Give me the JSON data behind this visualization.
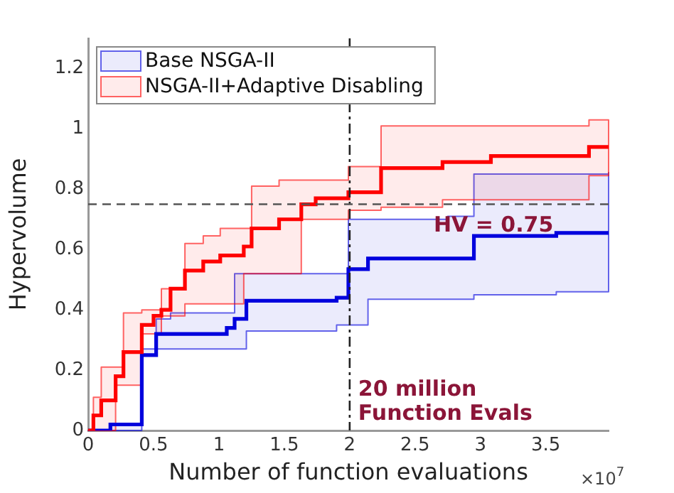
{
  "chart_data": {
    "type": "step",
    "xlabel": "Number of function evaluations",
    "ylabel": "Hypervolume",
    "xlim": [
      0,
      3.98
    ],
    "xticks": [
      0,
      0.5,
      1,
      1.5,
      2,
      2.5,
      3,
      3.5
    ],
    "ylim": [
      0,
      1.3
    ],
    "yticks": [
      0,
      0.2,
      0.4,
      0.6,
      0.8,
      1,
      1.2
    ],
    "grid": false,
    "legend": "top left",
    "series": [
      {
        "name": "Base NSGA-II",
        "color": "#0000dd",
        "x": [
          0,
          0.17,
          0.41,
          0.52,
          0.63,
          1.06,
          1.12,
          1.21,
          1.9,
          1.99,
          2.14,
          2.75,
          2.95,
          3.58,
          3.98
        ],
        "values": [
          0,
          0.02,
          0.25,
          0.32,
          0.32,
          0.34,
          0.37,
          0.43,
          0.44,
          0.535,
          0.57,
          0.57,
          0.645,
          0.655,
          0.66
        ],
        "upper": [
          0,
          0.02,
          0.27,
          0.37,
          0.39,
          0.39,
          0.52,
          0.52,
          0.52,
          0.7,
          0.7,
          0.71,
          0.85,
          0.85,
          0.855
        ],
        "lower": [
          0,
          0,
          0.25,
          0.27,
          0.27,
          0.27,
          0.27,
          0.33,
          0.35,
          0.35,
          0.435,
          0.435,
          0.45,
          0.46,
          0.46
        ]
      },
      {
        "name": "NSGA-II+Adaptive Disabling",
        "color": "#ff0000",
        "x": [
          0,
          0.04,
          0.1,
          0.21,
          0.27,
          0.41,
          0.5,
          0.56,
          0.63,
          0.74,
          0.88,
          1.01,
          1.19,
          1.25,
          1.46,
          1.63,
          1.74,
          1.99,
          2.24,
          2.71,
          3.08,
          3.83,
          3.98
        ],
        "values": [
          0,
          0.05,
          0.1,
          0.18,
          0.26,
          0.35,
          0.38,
          0.4,
          0.47,
          0.53,
          0.56,
          0.58,
          0.61,
          0.67,
          0.7,
          0.75,
          0.77,
          0.79,
          0.87,
          0.89,
          0.91,
          0.94,
          0.945
        ],
        "upper": [
          0,
          0.11,
          0.21,
          0.21,
          0.39,
          0.4,
          0.4,
          0.47,
          0.47,
          0.62,
          0.645,
          0.67,
          0.67,
          0.81,
          0.83,
          0.83,
          0.83,
          0.875,
          1.01,
          1.01,
          1.01,
          1.03,
          1.03
        ],
        "lower": [
          0,
          0,
          0,
          0.15,
          0.15,
          0.32,
          0.32,
          0.38,
          0.38,
          0.42,
          0.42,
          0.42,
          0.52,
          0.52,
          0.52,
          0.7,
          0.7,
          0.73,
          0.74,
          0.765,
          0.765,
          0.845,
          0.845
        ]
      }
    ],
    "ref_lines": [
      {
        "axis": "x",
        "value": 2,
        "color": "#222222",
        "line_style": "dashdot"
      },
      {
        "axis": "y",
        "value": 0.75,
        "color": "#555555",
        "line_style": "dashed"
      }
    ],
    "annotations": [
      {
        "text": "HV = 0.75",
        "x": 3.1,
        "y": 0.75
      },
      {
        "text": "20 million\nFunction Evals",
        "x": 2,
        "y": 0
      },
      "×10$^{7}$"
    ]
  }
}
